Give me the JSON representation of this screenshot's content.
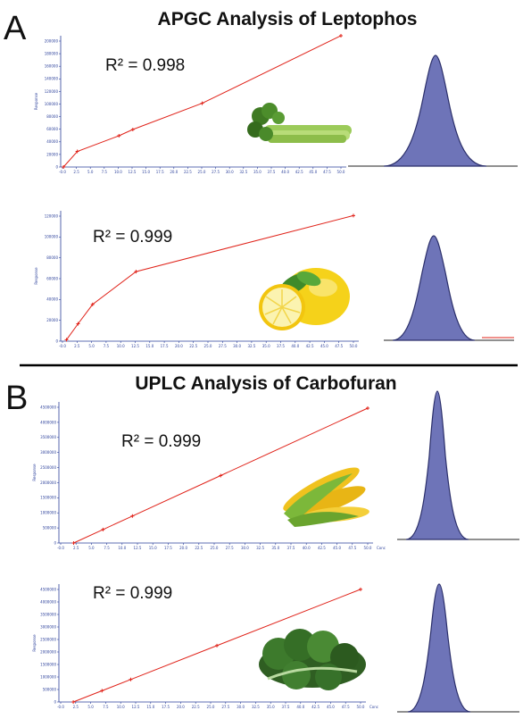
{
  "panels": [
    {
      "letter": "A",
      "title": "APGC Analysis of Leptophos"
    },
    {
      "letter": "B",
      "title": "UPLC Analysis of Carbofuran"
    }
  ],
  "colors": {
    "fit_line": "#e0231a",
    "axis": "#2a3f9a",
    "peak_fill": "#6e74b8",
    "peak_stroke": "#2b2f6a",
    "divider": "#000000"
  },
  "food_icons": [
    "celery-icon",
    "lemon-icon",
    "corn-icon",
    "kale-icon"
  ],
  "chart_data": [
    {
      "type": "line",
      "id": "leptophos-celery",
      "r2": "R² = 0.998",
      "ylabel": "Response",
      "xlabel": "",
      "x": [
        0,
        2.5,
        10,
        12.5,
        25,
        50
      ],
      "y": [
        0,
        25000,
        50000,
        60000,
        102000,
        210000
      ],
      "xlim": [
        -0.5,
        50
      ],
      "ylim": [
        0,
        210000
      ],
      "xticks": [
        "-0.0",
        "2.5",
        "5.0",
        "7.5",
        "10.0",
        "12.5",
        "15.0",
        "17.5",
        "20.0",
        "22.5",
        "25.0",
        "27.5",
        "30.0",
        "32.5",
        "35.0",
        "37.5",
        "40.0",
        "42.5",
        "45.0",
        "47.5",
        "50.0"
      ],
      "yticks": [
        "0",
        "20000",
        "40000",
        "60000",
        "80000",
        "100000",
        "120000",
        "140000",
        "160000",
        "180000",
        "200000"
      ]
    },
    {
      "type": "line",
      "id": "leptophos-lemon",
      "r2": "R² = 0.999",
      "ylabel": "Response",
      "xlabel": "",
      "x": [
        0.5,
        2.5,
        5.0,
        12.5,
        50
      ],
      "y": [
        1500,
        18000,
        38000,
        72000,
        130000
      ],
      "xlim": [
        -0.5,
        50
      ],
      "ylim": [
        0,
        135000
      ],
      "xticks": [
        "-0.0",
        "2.5",
        "5.0",
        "7.5",
        "10.0",
        "12.5",
        "15.0",
        "17.5",
        "20.0",
        "22.5",
        "25.0",
        "27.5",
        "30.0",
        "32.5",
        "35.0",
        "37.5",
        "40.0",
        "42.5",
        "45.0",
        "47.5",
        "50.0"
      ],
      "yticks": [
        "0",
        "20000",
        "40000",
        "60000",
        "80000",
        "100000",
        "120000"
      ]
    },
    {
      "type": "line",
      "id": "carbofuran-corn",
      "r2": "R² = 0.999",
      "ylabel": "Response",
      "xlabel": "Conc",
      "x": [
        0,
        5,
        10,
        25,
        50
      ],
      "y": [
        0,
        430000,
        860000,
        2150000,
        4300000
      ],
      "xlim": [
        -2.5,
        50
      ],
      "ylim": [
        0,
        4500000
      ],
      "xticks": [
        "-0.0",
        "2.5",
        "5.0",
        "7.5",
        "10.0",
        "12.5",
        "15.0",
        "17.5",
        "20.0",
        "22.5",
        "25.0",
        "27.5",
        "30.0",
        "32.5",
        "35.0",
        "37.5",
        "40.0",
        "42.5",
        "45.0",
        "47.5",
        "50.0"
      ],
      "yticks": [
        "0",
        "500000",
        "1000000",
        "1500000",
        "2000000",
        "2500000",
        "3000000",
        "3500000",
        "4000000",
        "4500000"
      ]
    },
    {
      "type": "line",
      "id": "carbofuran-kale",
      "r2": "R² = 0.999",
      "ylabel": "Response",
      "xlabel": "Conc",
      "x": [
        0,
        5,
        10,
        25,
        50
      ],
      "y": [
        0,
        430000,
        860000,
        2150000,
        4300000
      ],
      "xlim": [
        -2.5,
        50
      ],
      "ylim": [
        0,
        4500000
      ],
      "xticks": [
        "-0.0",
        "2.5",
        "5.0",
        "7.5",
        "10.0",
        "12.5",
        "15.0",
        "17.5",
        "20.0",
        "22.5",
        "25.0",
        "27.5",
        "30.0",
        "32.5",
        "35.0",
        "37.5",
        "40.0",
        "42.5",
        "45.0",
        "47.5",
        "50.0"
      ],
      "yticks": [
        "0",
        "500000",
        "1000000",
        "1500000",
        "2000000",
        "2500000",
        "3000000",
        "3500000",
        "4000000",
        "4500000"
      ]
    }
  ]
}
